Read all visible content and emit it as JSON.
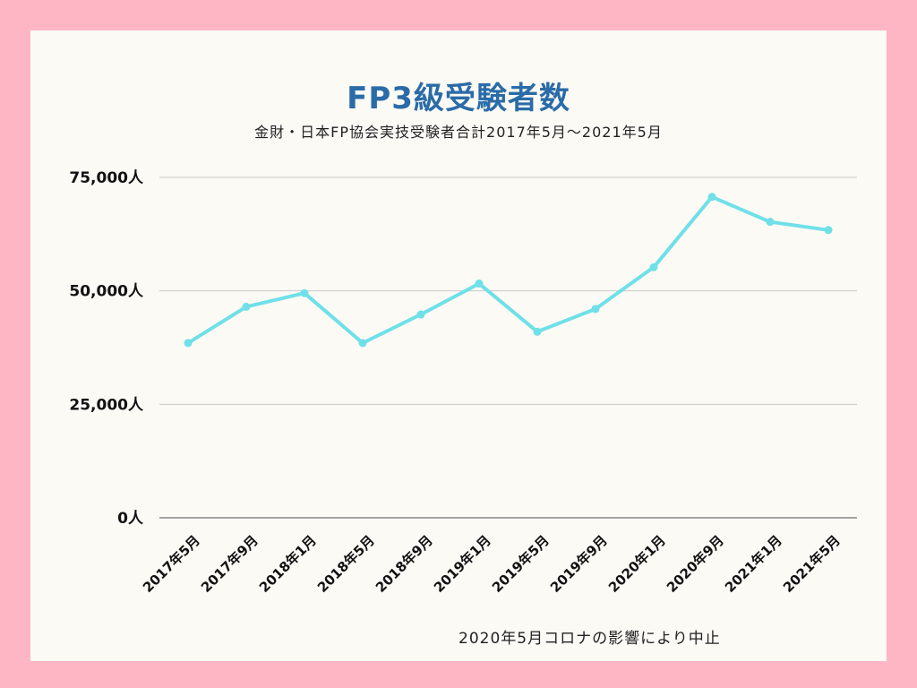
{
  "chart_data": {
    "type": "line",
    "title": "FP3級受験者数",
    "subtitle": "金財・日本FP協会実技受験者合計2017年5月～2021年5月",
    "categories": [
      "2017年5月",
      "2017年9月",
      "2018年1月",
      "2018年5月",
      "2018年9月",
      "2019年1月",
      "2019年5月",
      "2019年9月",
      "2020年1月",
      "2020年9月",
      "2021年1月",
      "2021年5月"
    ],
    "series": [
      {
        "values": [
          38500,
          46500,
          49500,
          38500,
          44800,
          51600,
          41000,
          46000,
          55200,
          70700,
          65200,
          63400
        ]
      }
    ],
    "ylim": [
      0,
      75000
    ],
    "yticks": [
      0,
      25000,
      50000,
      75000
    ],
    "ytick_labels": [
      "0人",
      "25,000人",
      "50,000人",
      "75,000人"
    ],
    "grid": true,
    "annotation": "2020年5月コロナの影響により中止",
    "colors": {
      "line": "#6fe0e8",
      "grid": "#c8c8c8",
      "title": "#2a6ca8",
      "frame": "#ffb6c4"
    }
  }
}
